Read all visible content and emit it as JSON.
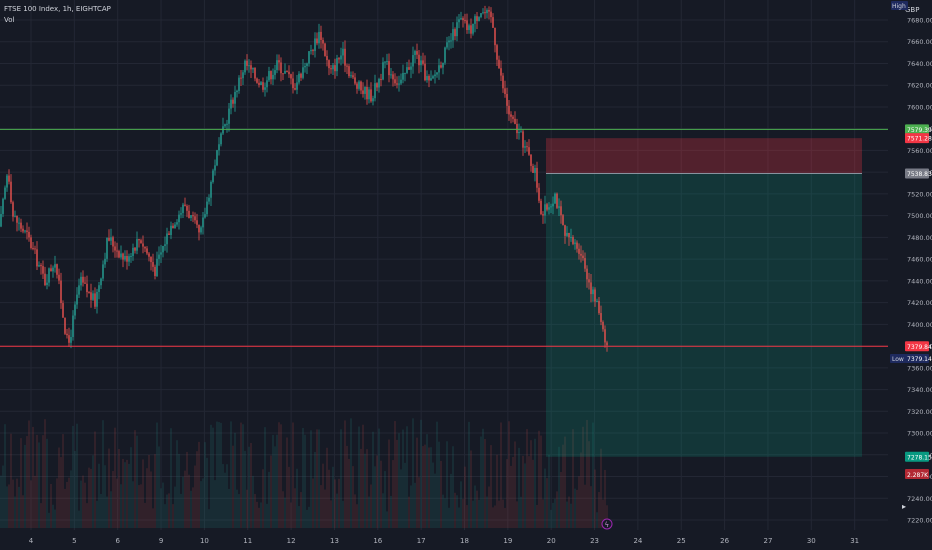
{
  "header": {
    "symbol": "FTSE 100 Index, 1h, EIGHTCAP",
    "indicator": "Vol"
  },
  "price_axis": {
    "currency": "GBP",
    "high_label": "High",
    "low_label": "Low"
  },
  "markers": {
    "high_badge": "High",
    "low_badge": "Low",
    "event_icon": "lightning-icon"
  },
  "colors": {
    "background": "#161a25",
    "up": "#26a69a",
    "down": "#ef5350",
    "resistance": "#4caf50",
    "support": "#f23645",
    "stop_zone": "#f23645",
    "target_zone": "#089981"
  },
  "chart_data": {
    "type": "candlestick",
    "title": "FTSE 100 Index, 1h, EIGHTCAP",
    "ylim": [
      7210,
      7700
    ],
    "y_ticks": [
      7220,
      7240,
      7260,
      7280,
      7300,
      7320,
      7340,
      7360,
      7380,
      7400,
      7420,
      7440,
      7460,
      7480,
      7500,
      7520,
      7540,
      7560,
      7580,
      7600,
      7620,
      7640,
      7660,
      7680
    ],
    "x_ticks": [
      "4",
      "5",
      "6",
      "9",
      "10",
      "11",
      "12",
      "13",
      "16",
      "17",
      "18",
      "19",
      "20",
      "23",
      "24",
      "25",
      "26",
      "27",
      "30",
      "31"
    ],
    "grid": true,
    "price_path": [
      [
        0,
        7490
      ],
      [
        8,
        7545
      ],
      [
        13,
        7500
      ],
      [
        28,
        7480
      ],
      [
        45,
        7440
      ],
      [
        55,
        7460
      ],
      [
        68,
        7378
      ],
      [
        80,
        7440
      ],
      [
        95,
        7420
      ],
      [
        108,
        7480
      ],
      [
        125,
        7460
      ],
      [
        140,
        7480
      ],
      [
        155,
        7450
      ],
      [
        170,
        7490
      ],
      [
        185,
        7510
      ],
      [
        200,
        7480
      ],
      [
        215,
        7550
      ],
      [
        230,
        7600
      ],
      [
        245,
        7640
      ],
      [
        262,
        7620
      ],
      [
        278,
        7640
      ],
      [
        295,
        7620
      ],
      [
        310,
        7650
      ],
      [
        320,
        7670
      ],
      [
        330,
        7630
      ],
      [
        342,
        7650
      ],
      [
        355,
        7620
      ],
      [
        372,
        7610
      ],
      [
        385,
        7640
      ],
      [
        400,
        7620
      ],
      [
        415,
        7650
      ],
      [
        430,
        7620
      ],
      [
        445,
        7650
      ],
      [
        460,
        7680
      ],
      [
        470,
        7670
      ],
      [
        480,
        7690
      ],
      [
        492,
        7680
      ],
      [
        500,
        7630
      ],
      [
        510,
        7590
      ],
      [
        522,
        7570
      ],
      [
        535,
        7540
      ],
      [
        542,
        7500
      ],
      [
        555,
        7520
      ],
      [
        565,
        7480
      ],
      [
        580,
        7470
      ],
      [
        592,
        7430
      ],
      [
        600,
        7410
      ],
      [
        607,
        7380
      ]
    ],
    "volume": {
      "last": "2.287K"
    },
    "levels": [
      {
        "name": "resistance",
        "price": 7579.39,
        "label": "7579.39"
      },
      {
        "name": "support",
        "price": 7379.84,
        "label": "7379.84"
      }
    ],
    "position": {
      "type": "short",
      "entry": 7538.83,
      "entry_label": "7538.83",
      "stop": 7571.28,
      "stop_label": "7571.28",
      "target": 7278.15,
      "target_label": "7278.15"
    },
    "low_value": 7379.14,
    "low_value_label": "7379.14"
  }
}
